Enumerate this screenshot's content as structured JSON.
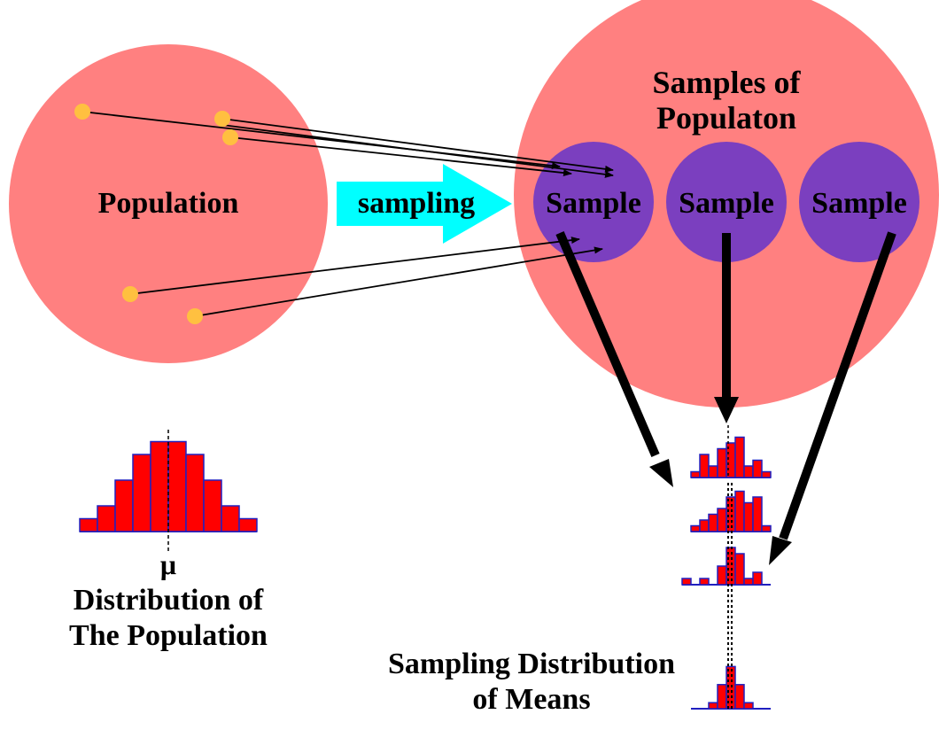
{
  "labels": {
    "population": "Population",
    "sampling": "sampling",
    "samples_of_line1": "Samples of",
    "samples_of_line2": "Populaton",
    "sample": "Sample",
    "mu": "μ",
    "dist_pop_line1": "Distribution of",
    "dist_pop_line2": "The Population",
    "sampling_dist_line1": "Sampling Distribution",
    "sampling_dist_line2": "of Means"
  },
  "colors": {
    "population_circle": "#FF8080",
    "samples_circle": "#FF8080",
    "sample_circle": "#7B3FBF",
    "point": "#FFC040",
    "sampling_arrow": "#00FFFF",
    "bar_fill": "#FF0000",
    "bar_stroke": "#2020C0",
    "arrow": "#000000"
  },
  "population_histogram": [
    1,
    2,
    4,
    6,
    7,
    7,
    6,
    4,
    2,
    1
  ],
  "sample_histograms": [
    [
      1,
      4,
      2,
      5,
      6,
      7,
      2,
      3,
      1
    ],
    [
      1,
      2,
      3,
      4,
      6,
      7,
      5,
      6,
      1
    ],
    [
      1,
      0,
      1,
      0,
      3,
      6,
      5,
      1,
      2
    ]
  ],
  "means_histogram": [
    0,
    0,
    1,
    4,
    7,
    4,
    1,
    0,
    0
  ]
}
